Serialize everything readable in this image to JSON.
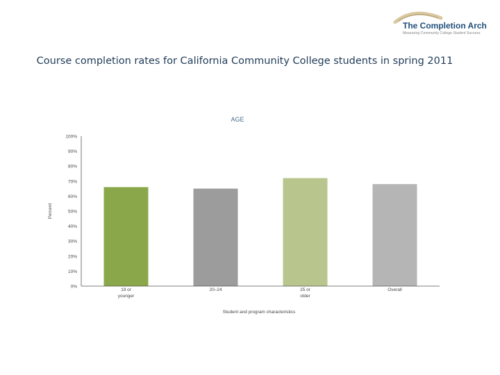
{
  "logo": {
    "name": "The Completion Arch",
    "tagline": "Measuring Community College Student Success"
  },
  "slide_title": "Course completion rates for California Community College students in spring 2011",
  "chart_data": {
    "type": "bar",
    "title": "AGE",
    "xlabel": "Student and program characteristics",
    "ylabel": "Percent",
    "ylim": [
      0,
      100
    ],
    "y_ticks": [
      0,
      10,
      20,
      30,
      40,
      50,
      60,
      70,
      80,
      90,
      100
    ],
    "y_tick_labels": [
      "0%",
      "10%",
      "20%",
      "30%",
      "40%",
      "50%",
      "60%",
      "70%",
      "80%",
      "90%",
      "100%"
    ],
    "categories": [
      [
        "19 or",
        "younger"
      ],
      [
        "20–24"
      ],
      [
        "25 or",
        "older"
      ],
      [
        "Overall"
      ]
    ],
    "values": [
      66,
      65,
      72,
      68
    ],
    "colors": [
      "#8aa84a",
      "#9c9c9c",
      "#b8c68e",
      "#b5b5b5"
    ],
    "grid": false
  }
}
